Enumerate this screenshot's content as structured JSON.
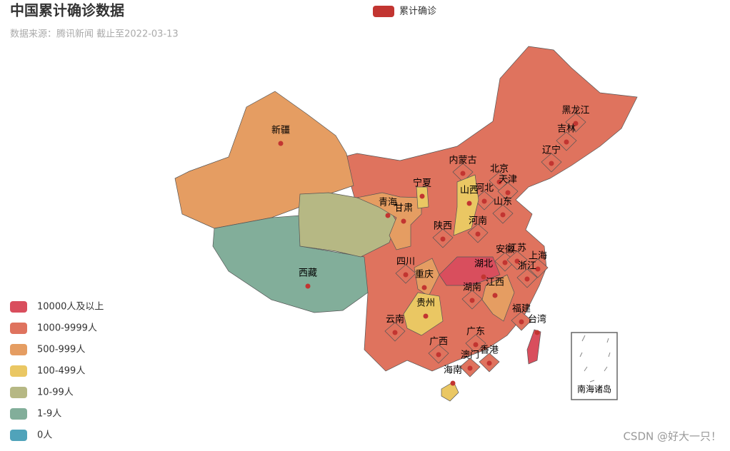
{
  "chart_data": {
    "type": "map",
    "title": "中国累计确诊数据",
    "subtitle": "数据来源：腾讯新闻 截止至2022-03-13",
    "series": [
      {
        "name": "累计确诊",
        "color": "#c23531"
      }
    ],
    "pieces": [
      {
        "label": "10000人及以上",
        "color": "#d94e5d"
      },
      {
        "label": "1000-9999人",
        "color": "#df735e"
      },
      {
        "label": "500-999人",
        "color": "#e59d62"
      },
      {
        "label": "100-499人",
        "color": "#eac763"
      },
      {
        "label": "10-99人",
        "color": "#b6b884"
      },
      {
        "label": "1-9人",
        "color": "#82ae9a"
      },
      {
        "label": "0人",
        "color": "#50a3ba"
      }
    ],
    "regions": [
      {
        "name": "新疆",
        "piece": 2
      },
      {
        "name": "西藏",
        "piece": 5
      },
      {
        "name": "青海",
        "piece": 4
      },
      {
        "name": "甘肃",
        "piece": 2
      },
      {
        "name": "宁夏",
        "piece": 3
      },
      {
        "name": "内蒙古",
        "piece": 1
      },
      {
        "name": "黑龙江",
        "piece": 1
      },
      {
        "name": "吉林",
        "piece": 1
      },
      {
        "name": "辽宁",
        "piece": 1
      },
      {
        "name": "北京",
        "piece": 1
      },
      {
        "name": "天津",
        "piece": 1
      },
      {
        "name": "河北",
        "piece": 1
      },
      {
        "name": "山西",
        "piece": 3
      },
      {
        "name": "山东",
        "piece": 1
      },
      {
        "name": "河南",
        "piece": 1
      },
      {
        "name": "陕西",
        "piece": 1
      },
      {
        "name": "四川",
        "piece": 1
      },
      {
        "name": "重庆",
        "piece": 2
      },
      {
        "name": "湖北",
        "piece": 0
      },
      {
        "name": "安徽",
        "piece": 1
      },
      {
        "name": "江苏",
        "piece": 1
      },
      {
        "name": "上海",
        "piece": 1
      },
      {
        "name": "浙江",
        "piece": 1
      },
      {
        "name": "湖南",
        "piece": 1
      },
      {
        "name": "江西",
        "piece": 2
      },
      {
        "name": "贵州",
        "piece": 3
      },
      {
        "name": "云南",
        "piece": 1
      },
      {
        "name": "福建",
        "piece": 1
      },
      {
        "name": "台湾",
        "piece": 0
      },
      {
        "name": "广西",
        "piece": 1
      },
      {
        "name": "广东",
        "piece": 1
      },
      {
        "name": "澳门",
        "piece": 1
      },
      {
        "name": "香港",
        "piece": 1
      },
      {
        "name": "海南",
        "piece": 3
      }
    ]
  },
  "inset_label": "南海诸岛",
  "watermark": "CSDN @好大一只！"
}
